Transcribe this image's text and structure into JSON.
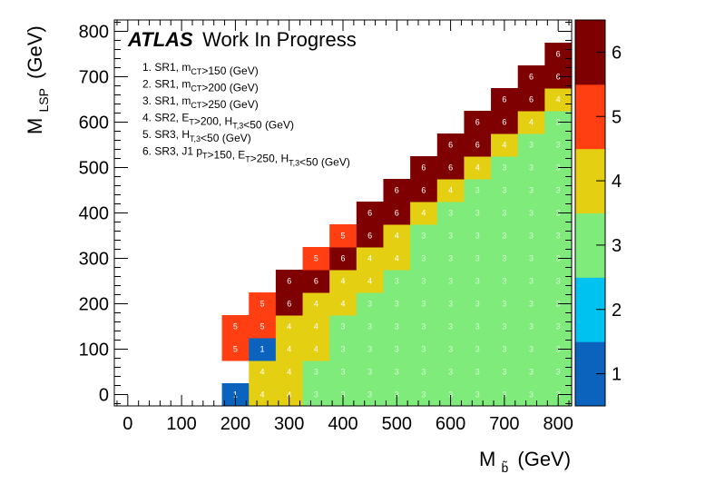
{
  "chart_data": {
    "type": "heatmap",
    "title_bold": "ATLAS",
    "title_rest": "Work In Progress",
    "xlabel": "M",
    "xlabel_sub": "b̃",
    "xlabel_unit": "(GeV)",
    "ylabel": "M",
    "ylabel_sub": "LSP",
    "ylabel_unit": "(GeV)",
    "xlim": [
      -25,
      825
    ],
    "ylim": [
      -25,
      825
    ],
    "x_ticks": [
      0,
      100,
      200,
      300,
      400,
      500,
      600,
      700,
      800
    ],
    "y_ticks": [
      0,
      100,
      200,
      300,
      400,
      500,
      600,
      700,
      800
    ],
    "z_range": [
      0.5,
      6.5
    ],
    "z_ticks": [
      1,
      2,
      3,
      4,
      5,
      6
    ],
    "palette": {
      "1": "#0b63be",
      "2": "#00c2f0",
      "3": "#7feb7a",
      "4": "#e4cf13",
      "5": "#ff3e12",
      "6": "#7f0000"
    },
    "label_colors": {
      "1": "#ffffff",
      "2": "#ffffff",
      "3": "#d8f7d6",
      "4": "#ffffff",
      "5": "#ffffff",
      "6": "#ffffff"
    },
    "bin_width": 50,
    "legend": [
      "1. SR1, m_CT>150 (GeV)",
      "2. SR1, m_CT>200 (GeV)",
      "3. SR1, m_CT>250 (GeV)",
      "4. SR2, E_T>200, H_T,3<50 (GeV)",
      "5. SR3, H_T,3<50 (GeV)",
      "6. SR3, J1 p_T>150, E_T>250, H_T,3<50 (GeV)"
    ],
    "rows": [
      {
        "y": 0,
        "x_start": 200,
        "values": [
          1,
          4,
          4,
          3,
          3,
          3,
          3,
          3,
          3,
          3,
          3,
          3,
          3
        ]
      },
      {
        "y": 50,
        "x_start": 250,
        "values": [
          4,
          4,
          3,
          3,
          3,
          3,
          3,
          3,
          3,
          3,
          3,
          3
        ]
      },
      {
        "y": 100,
        "x_start": 200,
        "values": [
          5,
          1,
          4,
          4,
          3,
          3,
          3,
          3,
          3,
          3,
          3,
          3,
          3
        ]
      },
      {
        "y": 150,
        "x_start": 200,
        "values": [
          5,
          5,
          4,
          4,
          3,
          3,
          3,
          3,
          3,
          3,
          3,
          3,
          3
        ]
      },
      {
        "y": 200,
        "x_start": 250,
        "values": [
          5,
          6,
          4,
          4,
          3,
          3,
          3,
          3,
          3,
          3,
          3,
          3
        ]
      },
      {
        "y": 250,
        "x_start": 300,
        "values": [
          6,
          6,
          4,
          4,
          3,
          3,
          3,
          3,
          3,
          3,
          3
        ]
      },
      {
        "y": 300,
        "x_start": 350,
        "values": [
          5,
          6,
          4,
          4,
          3,
          3,
          3,
          3,
          3,
          3
        ]
      },
      {
        "y": 350,
        "x_start": 400,
        "values": [
          5,
          6,
          4,
          3,
          3,
          3,
          3,
          3,
          3
        ]
      },
      {
        "y": 400,
        "x_start": 450,
        "values": [
          6,
          6,
          4,
          3,
          3,
          3,
          3,
          3
        ]
      },
      {
        "y": 450,
        "x_start": 500,
        "values": [
          6,
          6,
          4,
          3,
          3,
          3,
          3
        ]
      },
      {
        "y": 500,
        "x_start": 550,
        "values": [
          6,
          6,
          4,
          3,
          3,
          3
        ]
      },
      {
        "y": 550,
        "x_start": 600,
        "values": [
          6,
          6,
          4,
          3,
          3
        ]
      },
      {
        "y": 600,
        "x_start": 650,
        "values": [
          6,
          6,
          4,
          3
        ]
      },
      {
        "y": 650,
        "x_start": 700,
        "values": [
          6,
          6,
          4
        ]
      },
      {
        "y": 700,
        "x_start": 750,
        "values": [
          6,
          6
        ]
      },
      {
        "y": 750,
        "x_start": 800,
        "values": [
          6
        ]
      }
    ]
  }
}
